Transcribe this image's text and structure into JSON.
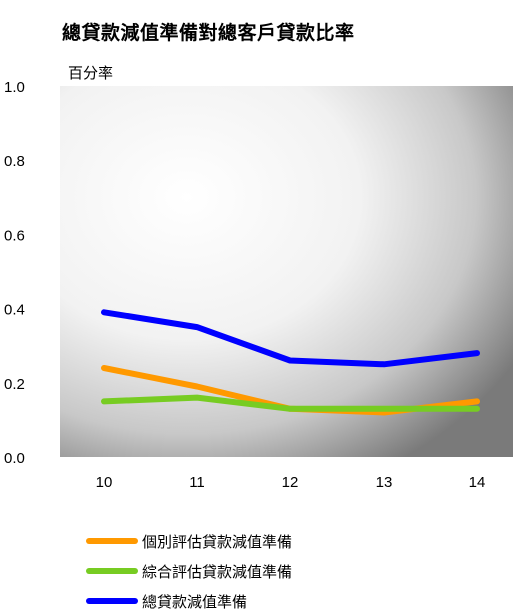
{
  "chart_data": {
    "type": "line",
    "title": "總貸款減值準備對總客戶貸款比率",
    "ylabel": "百分率",
    "xlabel": "",
    "categories": [
      "10",
      "11",
      "12",
      "13",
      "14"
    ],
    "ylim": [
      0,
      1.0
    ],
    "yticks": [
      "0.0",
      "0.2",
      "0.4",
      "0.6",
      "0.8",
      "1.0"
    ],
    "series": [
      {
        "name": "個別評估貸款減值準備",
        "color": "#ff9900",
        "values": [
          0.24,
          0.19,
          0.13,
          0.12,
          0.15
        ]
      },
      {
        "name": "綜合評估貸款減值準備",
        "color": "#77cc22",
        "values": [
          0.15,
          0.16,
          0.13,
          0.13,
          0.13
        ]
      },
      {
        "name": "總貸款減值準備",
        "color": "#0000ff",
        "values": [
          0.39,
          0.35,
          0.26,
          0.25,
          0.28
        ]
      }
    ],
    "grid": false,
    "legend_position": "bottom"
  }
}
